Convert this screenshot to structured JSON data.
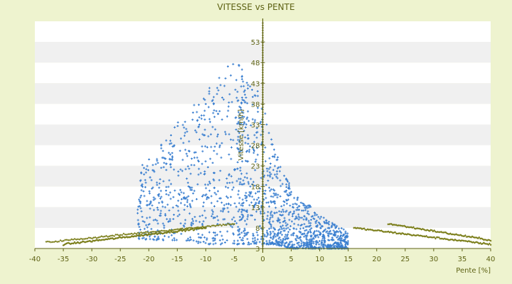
{
  "chart_data": {
    "type": "scatter",
    "title": "VITESSE vs PENTE",
    "xlabel": "Pente [%]",
    "ylabel": "Vitesse [km/h]",
    "xlim": [
      -40,
      40
    ],
    "ylim": [
      3,
      58
    ],
    "x_ticks": [
      -40,
      -35,
      -30,
      -25,
      -20,
      -15,
      -10,
      -5,
      0,
      5,
      10,
      15,
      20,
      25,
      30,
      35,
      40
    ],
    "y_ticks": [
      3,
      8,
      13,
      18,
      23,
      28,
      33,
      38,
      43,
      48,
      53
    ],
    "grid": "horizontal-bands",
    "legend": "none",
    "colors": {
      "background": "#eef3cf",
      "plot_band_light": "#ffffff",
      "plot_band_dark": "#f0f0f0",
      "series_blue": "#3a7fd0",
      "series_olive": "#7a7d18",
      "axis": "#5e6214"
    },
    "series": [
      {
        "color": "#3a7fd0",
        "marker": "small-plus",
        "clusters": [
          {
            "x_range": [
              -22,
              -2
            ],
            "y_center_top": 38,
            "y_center_bottom": 6,
            "count": 650
          },
          {
            "x_range": [
              -5,
              0
            ],
            "y_center_top": 48,
            "y_center_bottom": 6,
            "count": 200
          },
          {
            "x_range": [
              0,
              16
            ],
            "y_center_top": 24,
            "y_center_bottom": 4,
            "count": 900
          }
        ],
        "profile": [
          {
            "x": -25,
            "y_min": 5,
            "y_max": 18
          },
          {
            "x": -20,
            "y_min": 5,
            "y_max": 25
          },
          {
            "x": -15,
            "y_min": 5,
            "y_max": 34
          },
          {
            "x": -10,
            "y_min": 4,
            "y_max": 41
          },
          {
            "x": -5,
            "y_min": 4,
            "y_max": 49
          },
          {
            "x": 0,
            "y_min": 4,
            "y_max": 40
          },
          {
            "x": 2,
            "y_min": 4,
            "y_max": 28
          },
          {
            "x": 5,
            "y_min": 3,
            "y_max": 18
          },
          {
            "x": 10,
            "y_min": 3,
            "y_max": 11
          },
          {
            "x": 15,
            "y_min": 3,
            "y_max": 7
          }
        ]
      },
      {
        "color": "#7a7d18",
        "marker": "small-diamond",
        "bands": [
          {
            "x_range": [
              -35,
              -10
            ],
            "y_start": 4,
            "y_end": 8,
            "count": 140
          },
          {
            "x_range": [
              -38,
              -5
            ],
            "y_start": 4.5,
            "y_end": 9,
            "count": 120
          },
          {
            "x_range": [
              16,
              40
            ],
            "y_start": 8,
            "y_end": 4,
            "count": 120
          },
          {
            "x_range": [
              22,
              40
            ],
            "y_start": 9,
            "y_end": 5,
            "count": 90
          }
        ],
        "vertical_line": {
          "x": 0,
          "y_range": [
            3,
            58
          ]
        }
      }
    ]
  }
}
